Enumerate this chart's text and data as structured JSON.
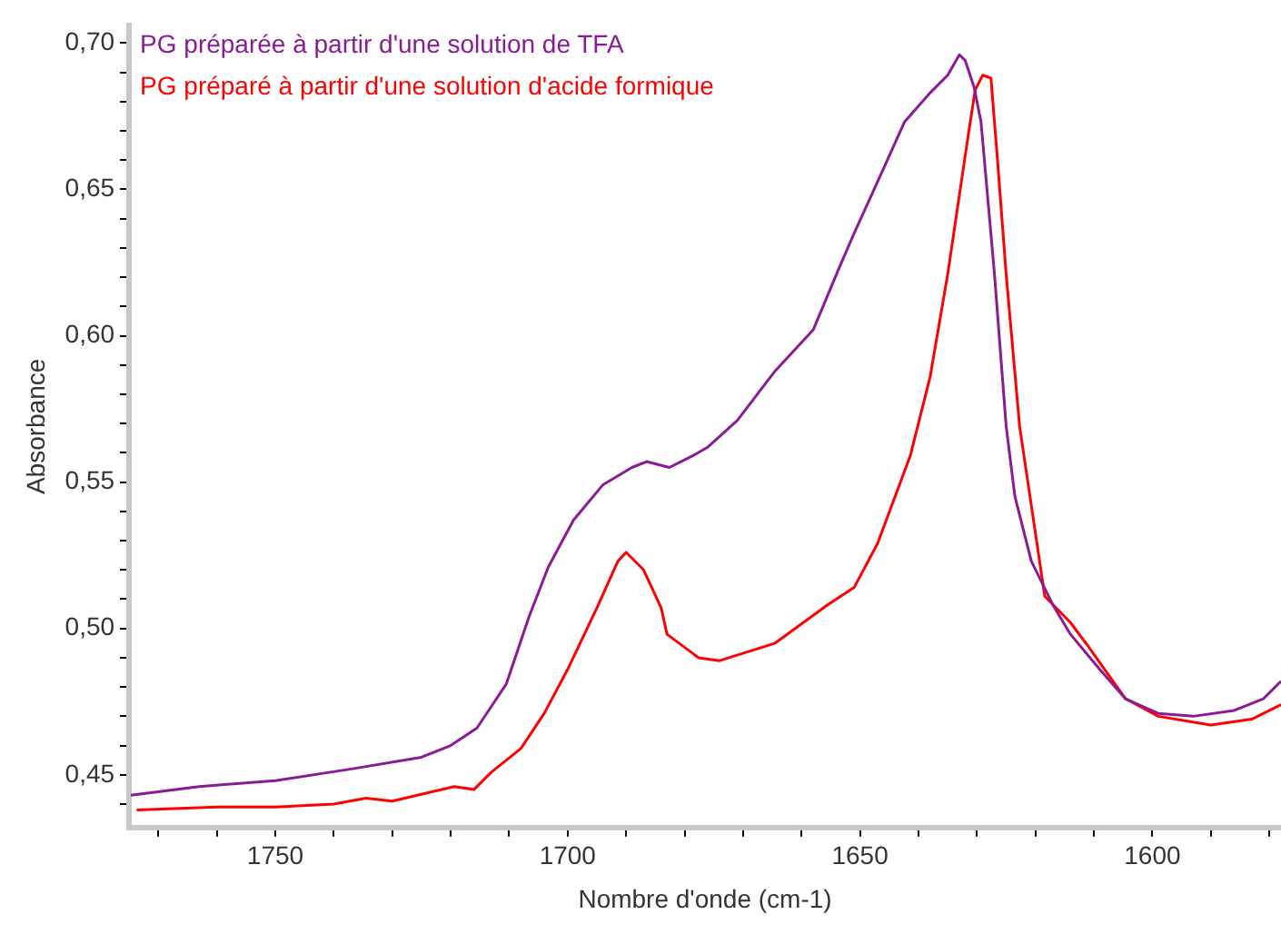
{
  "chart_data": {
    "type": "line",
    "xlabel": "Nombre d'onde (cm-1)",
    "ylabel": "Absorbance",
    "legend": "top left",
    "grid": false,
    "marker": "none",
    "line_style": "solid",
    "xlim": [
      1775,
      1578
    ],
    "ylim": [
      0.432,
      0.706
    ],
    "xticks": [
      {
        "value": 1770,
        "label": null
      },
      {
        "value": 1760,
        "label": null
      },
      1750,
      {
        "value": 1740,
        "label": null
      },
      {
        "value": 1730,
        "label": null
      },
      {
        "value": 1720,
        "label": null
      },
      {
        "value": 1710,
        "label": null
      },
      1700,
      {
        "value": 1690,
        "label": null
      },
      {
        "value": 1680,
        "label": null
      },
      {
        "value": 1670,
        "label": null
      },
      {
        "value": 1660,
        "label": null
      },
      1650,
      {
        "value": 1640,
        "label": null
      },
      {
        "value": 1630,
        "label": null
      },
      {
        "value": 1620,
        "label": null
      },
      {
        "value": 1610,
        "label": null
      },
      1600,
      {
        "value": 1590,
        "label": null
      },
      {
        "value": 1580,
        "label": null
      }
    ],
    "yticks": [
      {
        "value": 0.44,
        "label": null
      },
      {
        "value": 0.45,
        "label": "0,45"
      },
      {
        "value": 0.46,
        "label": null
      },
      {
        "value": 0.47,
        "label": null
      },
      {
        "value": 0.48,
        "label": null
      },
      {
        "value": 0.49,
        "label": null
      },
      {
        "value": 0.5,
        "label": "0,50"
      },
      {
        "value": 0.51,
        "label": null
      },
      {
        "value": 0.52,
        "label": null
      },
      {
        "value": 0.53,
        "label": null
      },
      {
        "value": 0.54,
        "label": null
      },
      {
        "value": 0.55,
        "label": "0,55"
      },
      {
        "value": 0.56,
        "label": null
      },
      {
        "value": 0.57,
        "label": null
      },
      {
        "value": 0.58,
        "label": null
      },
      {
        "value": 0.59,
        "label": null
      },
      {
        "value": 0.6,
        "label": "0,60"
      },
      {
        "value": 0.61,
        "label": null
      },
      {
        "value": 0.62,
        "label": null
      },
      {
        "value": 0.63,
        "label": null
      },
      {
        "value": 0.64,
        "label": null
      },
      {
        "value": 0.65,
        "label": "0,65"
      },
      {
        "value": 0.66,
        "label": null
      },
      {
        "value": 0.67,
        "label": null
      },
      {
        "value": 0.68,
        "label": null
      },
      {
        "value": 0.69,
        "label": null
      },
      {
        "value": 0.7,
        "label": "0,70"
      }
    ],
    "series": [
      {
        "name": "PG préparée à partir d'une solution de TFA",
        "color": "#8b1a96",
        "x": [
          1774.7,
          1763,
          1750,
          1737,
          1725,
          1720,
          1715.5,
          1710.5,
          1706.6,
          1703.3,
          1699,
          1694,
          1689,
          1686.5,
          1682.6,
          1678.6,
          1676,
          1671,
          1664.5,
          1658,
          1653.6,
          1651,
          1646,
          1642.4,
          1638,
          1635,
          1633,
          1632,
          1630.5,
          1629.3,
          1627,
          1625,
          1623.5,
          1620.7,
          1617,
          1614,
          1609,
          1604.6,
          1599,
          1593,
          1586,
          1581,
          1578
        ],
        "values": [
          0.443,
          0.446,
          0.448,
          0.452,
          0.456,
          0.46,
          0.466,
          0.481,
          0.504,
          0.521,
          0.537,
          0.549,
          0.555,
          0.557,
          0.555,
          0.559,
          0.562,
          0.571,
          0.588,
          0.602,
          0.623,
          0.635,
          0.657,
          0.673,
          0.683,
          0.689,
          0.696,
          0.694,
          0.685,
          0.673,
          0.621,
          0.569,
          0.545,
          0.523,
          0.508,
          0.498,
          0.486,
          0.476,
          0.471,
          0.47,
          0.472,
          0.476,
          0.482
        ]
      },
      {
        "name": "PG préparé à partir d'une solution d'acide formique",
        "color": "#ff0000",
        "x": [
          1773.7,
          1760,
          1750,
          1740,
          1734.5,
          1730,
          1719.4,
          1716,
          1713,
          1708,
          1704,
          1700,
          1695,
          1691.4,
          1690,
          1687,
          1684,
          1683,
          1677.6,
          1674,
          1664.5,
          1655.6,
          1651,
          1647,
          1641.4,
          1638,
          1635,
          1631.6,
          1630.3,
          1629,
          1627.6,
          1626.6,
          1625,
          1622.7,
          1618.4,
          1614,
          1611,
          1604.6,
          1599,
          1590,
          1583,
          1578
        ],
        "values": [
          0.438,
          0.439,
          0.439,
          0.44,
          0.442,
          0.441,
          0.446,
          0.445,
          0.451,
          0.459,
          0.471,
          0.486,
          0.507,
          0.523,
          0.526,
          0.52,
          0.507,
          0.498,
          0.49,
          0.489,
          0.495,
          0.508,
          0.514,
          0.529,
          0.559,
          0.586,
          0.621,
          0.667,
          0.684,
          0.689,
          0.688,
          0.663,
          0.621,
          0.569,
          0.511,
          0.502,
          0.494,
          0.476,
          0.47,
          0.467,
          0.469,
          0.474
        ]
      }
    ]
  }
}
